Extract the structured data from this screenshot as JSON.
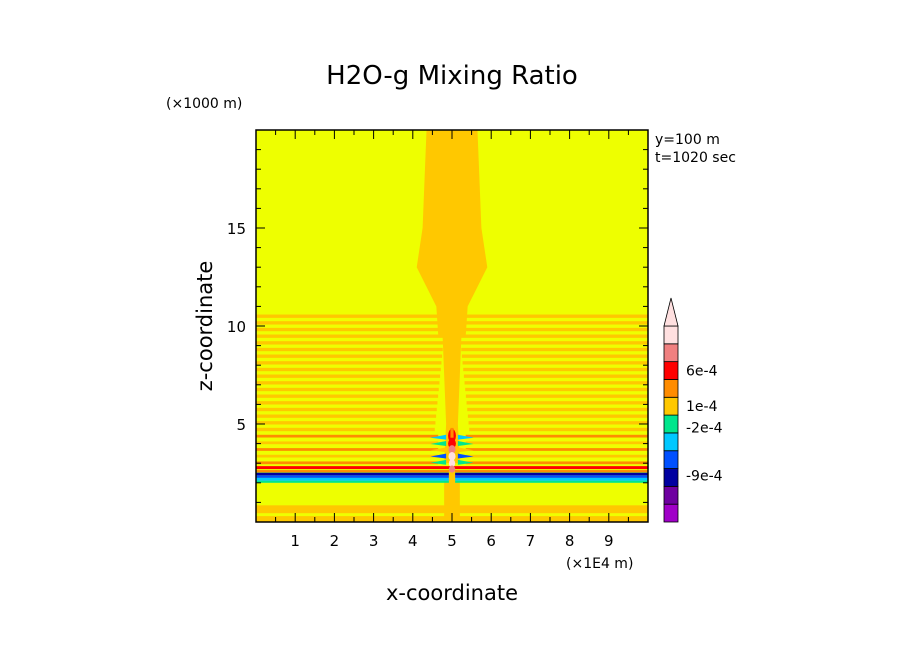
{
  "chart_data": {
    "type": "heatmap",
    "title": "H2O-g Mixing Ratio",
    "xlabel": "x-coordinate",
    "ylabel": "z-coordinate",
    "x_units": "(×1E4 m)",
    "y_units": "(×1000 m)",
    "xlim": [
      0,
      10
    ],
    "ylim": [
      0,
      20
    ],
    "x_ticks": [
      "1",
      "2",
      "3",
      "4",
      "5",
      "6",
      "7",
      "8",
      "9"
    ],
    "y_ticks": [
      "5",
      "10",
      "15"
    ],
    "annotations": [
      "y=100 m",
      "t=1020 sec"
    ],
    "colorbar": {
      "tick_labels": [
        "6e-4",
        "1e-4",
        "-2e-4",
        "-9e-4"
      ],
      "tick_values": [
        0.0006,
        0.0001,
        -0.0002,
        -0.0009
      ],
      "colors": [
        "#a000c8",
        "#6e00a0",
        "#0000a0",
        "#0050ff",
        "#00c8ff",
        "#00e68c",
        "#ffc800",
        "#ff8c00",
        "#ff0000",
        "#f08080",
        "#ffe0e0"
      ],
      "extend": "max"
    },
    "field": {
      "background_color": "#eeff00",
      "plume_color": "#ffc800"
    }
  }
}
